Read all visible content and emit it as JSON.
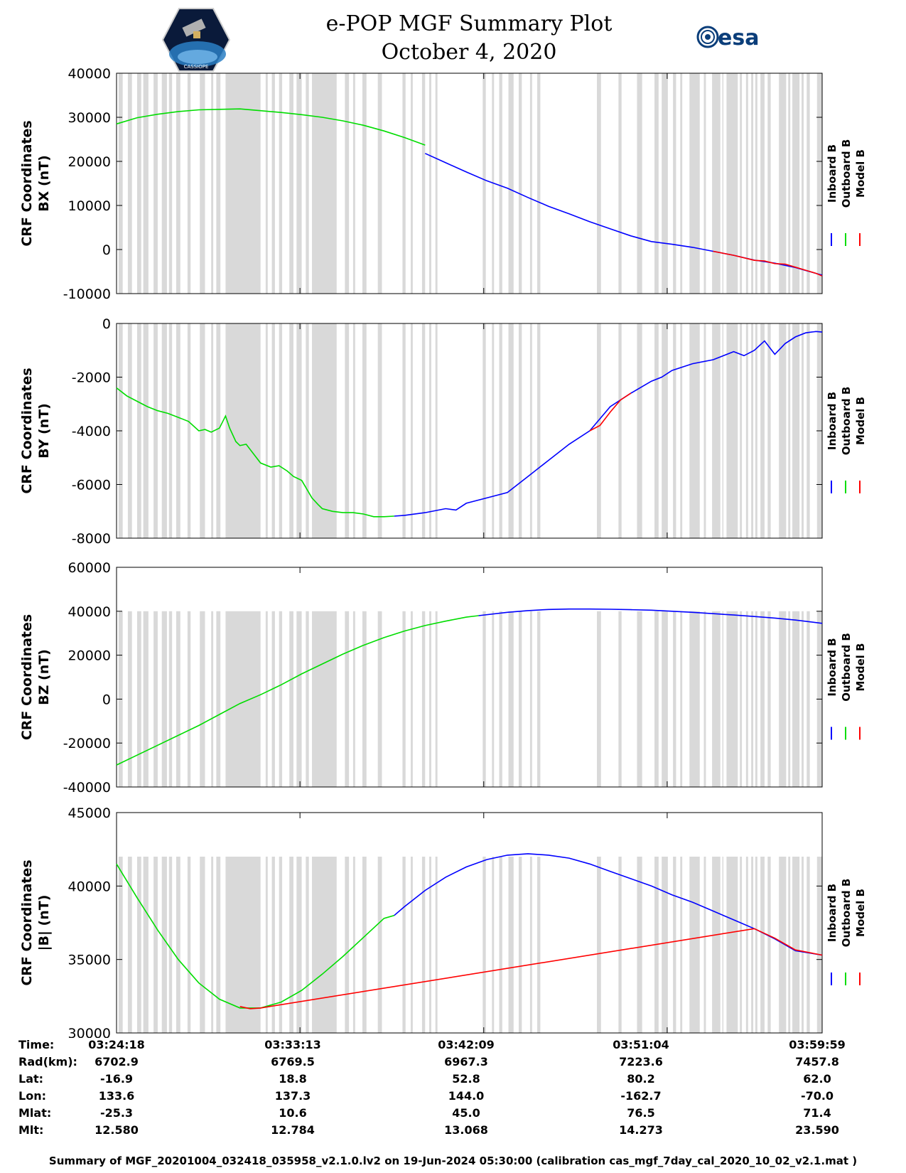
{
  "header": {
    "title_line1": "e-POP MGF Summary Plot",
    "title_line2": "October 4, 2020",
    "logo_left_text": "CASSIOPE",
    "logo_right_text": "esa"
  },
  "colors": {
    "inboard": "#0000ff",
    "outboard": "#00dd00",
    "model": "#ff0000",
    "gap_shading": "#d9d9d9",
    "esa_blue": "#0b3e7a"
  },
  "legend": [
    "Inboard B",
    "Outboard B",
    "Model B"
  ],
  "shaded_intervals_minutes": [
    [
      0.1,
      0.3
    ],
    [
      0.55,
      0.75
    ],
    [
      1.0,
      1.2
    ],
    [
      1.3,
      1.55
    ],
    [
      1.8,
      2.0
    ],
    [
      2.2,
      2.45
    ],
    [
      2.55,
      2.7
    ],
    [
      2.9,
      3.1
    ],
    [
      3.45,
      3.6
    ],
    [
      4.05,
      4.3
    ],
    [
      4.6,
      4.7
    ],
    [
      4.85,
      5.05
    ],
    [
      5.3,
      7.0
    ],
    [
      7.25,
      7.35
    ],
    [
      7.55,
      7.7
    ],
    [
      7.9,
      8.05
    ],
    [
      8.4,
      8.6
    ],
    [
      8.75,
      9.0
    ],
    [
      9.2,
      9.35
    ],
    [
      9.5,
      10.7
    ],
    [
      11.1,
      11.3
    ],
    [
      11.5,
      11.6
    ],
    [
      11.95,
      12.15
    ],
    [
      12.7,
      12.9
    ],
    [
      13.9,
      14.05
    ],
    [
      14.3,
      14.4
    ],
    [
      14.85,
      15.0
    ],
    [
      15.2,
      15.3
    ],
    [
      15.5,
      15.6
    ],
    [
      17.8,
      17.95
    ],
    [
      18.25,
      18.35
    ],
    [
      18.6,
      18.75
    ],
    [
      19.05,
      19.3
    ],
    [
      19.55,
      19.7
    ],
    [
      20.1,
      20.2
    ],
    [
      20.45,
      20.6
    ],
    [
      23.35,
      23.55
    ],
    [
      24.4,
      24.55
    ],
    [
      25.3,
      25.55
    ],
    [
      26.15,
      26.35
    ],
    [
      26.5,
      26.8
    ],
    [
      27.05,
      27.2
    ],
    [
      27.4,
      27.5
    ],
    [
      27.85,
      28.35
    ],
    [
      28.55,
      28.65
    ],
    [
      28.95,
      29.35
    ],
    [
      29.45,
      29.5
    ],
    [
      29.65,
      30.2
    ],
    [
      30.3,
      30.4
    ],
    [
      30.6,
      30.7
    ],
    [
      30.85,
      30.95
    ],
    [
      31.05,
      31.15
    ],
    [
      31.3,
      31.5
    ],
    [
      31.65,
      31.8
    ],
    [
      32.2,
      32.55
    ],
    [
      32.65,
      32.75
    ],
    [
      32.85,
      33.2
    ],
    [
      33.3,
      33.4
    ],
    [
      33.55,
      33.7
    ],
    [
      34.05,
      34.3
    ]
  ],
  "chart_data": [
    {
      "type": "line",
      "ylabel_line1": "CRF Coordinates",
      "ylabel_line2": "BX (nT)",
      "ylim": [
        -10000,
        40000
      ],
      "yticks": [
        {
          "v": 40000,
          "label": "40000"
        },
        {
          "v": 30000,
          "label": "30000"
        },
        {
          "v": 20000,
          "label": "20000"
        },
        {
          "v": 10000,
          "label": "10000"
        },
        {
          "v": 0,
          "label": "0"
        },
        {
          "v": -10000,
          "label": "-10000"
        }
      ],
      "shade_range": [
        -10000,
        40000
      ],
      "series": [
        {
          "name": "Outboard B",
          "x": [
            0,
            1,
            2,
            3,
            4,
            5,
            6,
            7,
            8,
            9,
            10,
            11,
            12,
            13,
            14,
            15
          ],
          "values": [
            28500,
            29900,
            30700,
            31300,
            31700,
            31800,
            31900,
            31500,
            31100,
            30600,
            30000,
            29200,
            28200,
            26900,
            25400,
            23700
          ]
        },
        {
          "name": "Inboard B",
          "x": [
            15,
            16,
            17,
            18,
            19,
            20,
            21,
            22,
            23,
            24,
            25,
            26,
            27,
            28,
            29,
            30,
            31,
            32,
            33,
            34.3
          ],
          "values": [
            21800,
            19700,
            17600,
            15600,
            13900,
            11800,
            9800,
            8100,
            6300,
            4700,
            3100,
            1800,
            1200,
            500,
            -400,
            -1300,
            -2400,
            -3100,
            -4100,
            -5800
          ]
        },
        {
          "name": "Model B",
          "x": [
            29,
            30,
            31,
            31.5,
            32,
            32.5,
            33,
            33.5,
            34,
            34.3
          ],
          "values": [
            -400,
            -1300,
            -2450,
            -2600,
            -3200,
            -3300,
            -4000,
            -4700,
            -5400,
            -6000
          ]
        }
      ]
    },
    {
      "type": "line",
      "ylabel_line1": "CRF Coordinates",
      "ylabel_line2": "BY (nT)",
      "ylim": [
        -8000,
        0
      ],
      "yticks": [
        {
          "v": 0,
          "label": "0"
        },
        {
          "v": -2000,
          "label": "-2000"
        },
        {
          "v": -4000,
          "label": "-4000"
        },
        {
          "v": -6000,
          "label": "-6000"
        },
        {
          "v": -8000,
          "label": "-8000"
        }
      ],
      "shade_range": [
        -8000,
        0
      ],
      "series": [
        {
          "name": "Outboard B",
          "x": [
            0,
            0.5,
            1,
            1.5,
            2,
            2.5,
            3,
            3.5,
            4,
            4.3,
            4.6,
            5,
            5.3,
            5.5,
            5.8,
            6,
            6.3,
            6.7,
            7,
            7.5,
            7.9,
            8.3,
            8.6,
            9,
            9.5,
            9.8,
            10,
            10.5,
            11,
            11.5,
            12,
            12.5,
            13,
            13.5
          ],
          "values": [
            -2400,
            -2700,
            -2900,
            -3100,
            -3250,
            -3350,
            -3500,
            -3650,
            -4000,
            -3950,
            -4050,
            -3900,
            -3450,
            -3900,
            -4400,
            -4550,
            -4500,
            -4900,
            -5200,
            -5350,
            -5300,
            -5500,
            -5700,
            -5850,
            -6500,
            -6750,
            -6900,
            -7000,
            -7050,
            -7050,
            -7100,
            -7200,
            -7200,
            -7180
          ]
        },
        {
          "name": "Inboard B",
          "x": [
            13.5,
            14,
            15,
            16,
            16.5,
            17,
            18,
            19,
            20,
            21,
            22,
            23,
            24,
            25,
            26,
            26.5,
            27,
            28,
            29,
            30,
            30.5,
            31,
            31.5,
            32,
            32.5,
            33,
            33.5,
            34,
            34.3
          ],
          "values": [
            -7180,
            -7150,
            -7050,
            -6900,
            -6950,
            -6700,
            -6500,
            -6300,
            -5700,
            -5100,
            -4500,
            -4000,
            -3100,
            -2600,
            -2150,
            -2000,
            -1750,
            -1500,
            -1350,
            -1050,
            -1200,
            -1000,
            -650,
            -1150,
            -750,
            -500,
            -350,
            -300,
            -320
          ]
        },
        {
          "name": "Model B",
          "x": [
            23,
            23.5,
            24,
            24.5,
            25
          ],
          "values": [
            -4000,
            -3800,
            -3300,
            -2850,
            -2600
          ]
        }
      ]
    },
    {
      "type": "line",
      "ylabel_line1": "CRF Coordinates",
      "ylabel_line2": "BZ (nT)",
      "ylim": [
        -40000,
        60000
      ],
      "yticks": [
        {
          "v": 60000,
          "label": "60000"
        },
        {
          "v": 40000,
          "label": "40000"
        },
        {
          "v": 20000,
          "label": "20000"
        },
        {
          "v": 0,
          "label": "0"
        },
        {
          "v": -20000,
          "label": "-20000"
        },
        {
          "v": -40000,
          "label": "-40000"
        }
      ],
      "shade_range": [
        -40000,
        40000
      ],
      "series": [
        {
          "name": "Outboard B",
          "x": [
            0,
            1,
            2,
            3,
            4,
            5,
            6,
            7,
            8,
            9,
            10,
            11,
            12,
            13,
            14,
            15,
            16,
            17,
            17.6
          ],
          "values": [
            -30000,
            -25500,
            -21000,
            -16500,
            -12000,
            -7000,
            -2000,
            2000,
            6500,
            11500,
            16000,
            20500,
            24500,
            28000,
            31000,
            33500,
            35500,
            37300,
            38000
          ]
        },
        {
          "name": "Inboard B",
          "x": [
            17.6,
            19,
            20,
            21,
            22,
            23,
            24,
            25,
            26,
            27,
            28,
            29,
            30,
            31,
            32,
            33,
            34.3
          ],
          "values": [
            38000,
            39500,
            40300,
            40800,
            41000,
            41000,
            40900,
            40700,
            40500,
            40000,
            39500,
            38900,
            38300,
            37600,
            36900,
            36000,
            34500
          ]
        }
      ]
    },
    {
      "type": "line",
      "ylabel_line1": "CRF Coordinates",
      "ylabel_line2": "|B| (nT)",
      "ylim": [
        30000,
        45000
      ],
      "yticks": [
        {
          "v": 45000,
          "label": "45000"
        },
        {
          "v": 40000,
          "label": "40000"
        },
        {
          "v": 35000,
          "label": "35000"
        },
        {
          "v": 30000,
          "label": "30000"
        }
      ],
      "shade_range": [
        30000,
        42000
      ],
      "series": [
        {
          "name": "Outboard B",
          "x": [
            0,
            1,
            2,
            3,
            4,
            5,
            6,
            7,
            8,
            9,
            10,
            11,
            12,
            13,
            13.5
          ],
          "values": [
            41500,
            39200,
            37000,
            35000,
            33400,
            32300,
            31700,
            31700,
            32100,
            32900,
            34000,
            35200,
            36500,
            37800,
            38000
          ]
        },
        {
          "name": "Inboard B",
          "x": [
            13.5,
            14,
            15,
            16,
            17,
            18,
            19,
            20,
            21,
            22,
            23,
            24,
            25,
            26,
            27,
            28,
            29,
            30,
            31,
            32,
            33,
            34.3
          ],
          "values": [
            38000,
            38600,
            39700,
            40600,
            41300,
            41800,
            42100,
            42200,
            42100,
            41900,
            41500,
            41000,
            40500,
            40000,
            39400,
            38900,
            38300,
            37700,
            37100,
            36400,
            35600,
            35300
          ]
        },
        {
          "name": "Model B",
          "x": [
            6,
            6.5,
            7,
            31,
            32,
            33,
            34.3
          ],
          "values": [
            31800,
            31650,
            31700,
            37100,
            36450,
            35650,
            35300
          ]
        }
      ]
    }
  ],
  "xticks_minutes": [
    0,
    8.917,
    17.85,
    26.767,
    35.683
  ],
  "x_range_minutes": [
    0,
    34.3
  ],
  "info_table": {
    "labels": [
      "Time:",
      "Rad(km):",
      "Lat:",
      "Lon:",
      "Mlat:",
      "Mlt:"
    ],
    "columns": [
      [
        "03:24:18",
        "6702.9",
        "-16.9",
        "133.6",
        "-25.3",
        "12.580"
      ],
      [
        "03:33:13",
        "6769.5",
        "18.8",
        "137.3",
        "10.6",
        "12.784"
      ],
      [
        "03:42:09",
        "6967.3",
        "52.8",
        "144.0",
        "45.0",
        "13.068"
      ],
      [
        "03:51:04",
        "7223.6",
        "80.2",
        "-162.7",
        "76.5",
        "14.273"
      ],
      [
        "03:59:59",
        "7457.8",
        "62.0",
        "-70.0",
        "71.4",
        "23.590"
      ]
    ]
  },
  "footer": "Summary of MGF_20201004_032418_035958_v2.1.0.lv2 on 19-Jun-2024 05:30:00 (calibration cas_mgf_7day_cal_2020_10_02_v2.1.mat )"
}
